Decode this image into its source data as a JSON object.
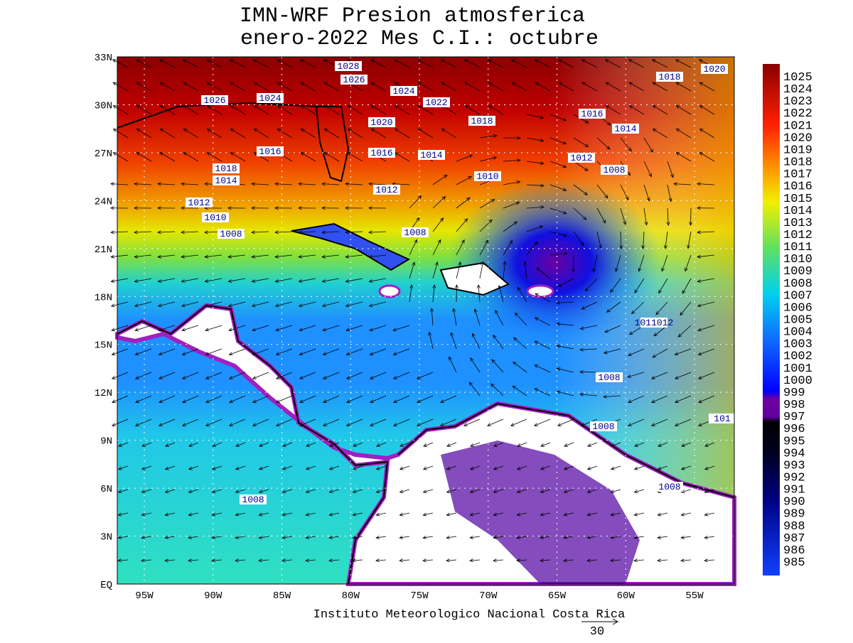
{
  "header": {
    "title": "IMN-WRF  Presion atmosferica",
    "subtitle": "enero-2022 Mes C.I.: octubre"
  },
  "axes": {
    "lat_labels": [
      "33N",
      "30N",
      "27N",
      "24N",
      "21N",
      "18N",
      "15N",
      "12N",
      "9N",
      "6N",
      "3N",
      "EQ"
    ],
    "lon_labels": [
      "95W",
      "90W",
      "85W",
      "80W",
      "75W",
      "70W",
      "65W",
      "60W",
      "55W"
    ]
  },
  "colorbar": {
    "labels": [
      "1025",
      "1024",
      "1023",
      "1022",
      "1021",
      "1020",
      "1019",
      "1018",
      "1017",
      "1016",
      "1015",
      "1014",
      "1013",
      "1012",
      "1011",
      "1010",
      "1009",
      "1008",
      "1007",
      "1006",
      "1005",
      "1004",
      "1003",
      "1002",
      "1001",
      "1000",
      "999",
      "998",
      "997",
      "996",
      "995",
      "994",
      "993",
      "992",
      "991",
      "990",
      "989",
      "988",
      "987",
      "986",
      "985"
    ]
  },
  "contour_labels": [
    "1028",
    "1026",
    "1026",
    "1024",
    "1024",
    "1022",
    "1020",
    "1018",
    "1018",
    "1020",
    "1016",
    "1014",
    "1016",
    "1016",
    "1014",
    "1018",
    "1014",
    "1012",
    "1008",
    "1012",
    "1010",
    "1012",
    "1010",
    "1008",
    "1008",
    "1011012",
    "1008",
    "1008",
    "1008",
    "1008",
    "101"
  ],
  "footer": {
    "credit": "Instituto Meteorologico Nacional Costa Rica",
    "vector_reference": "30"
  }
}
